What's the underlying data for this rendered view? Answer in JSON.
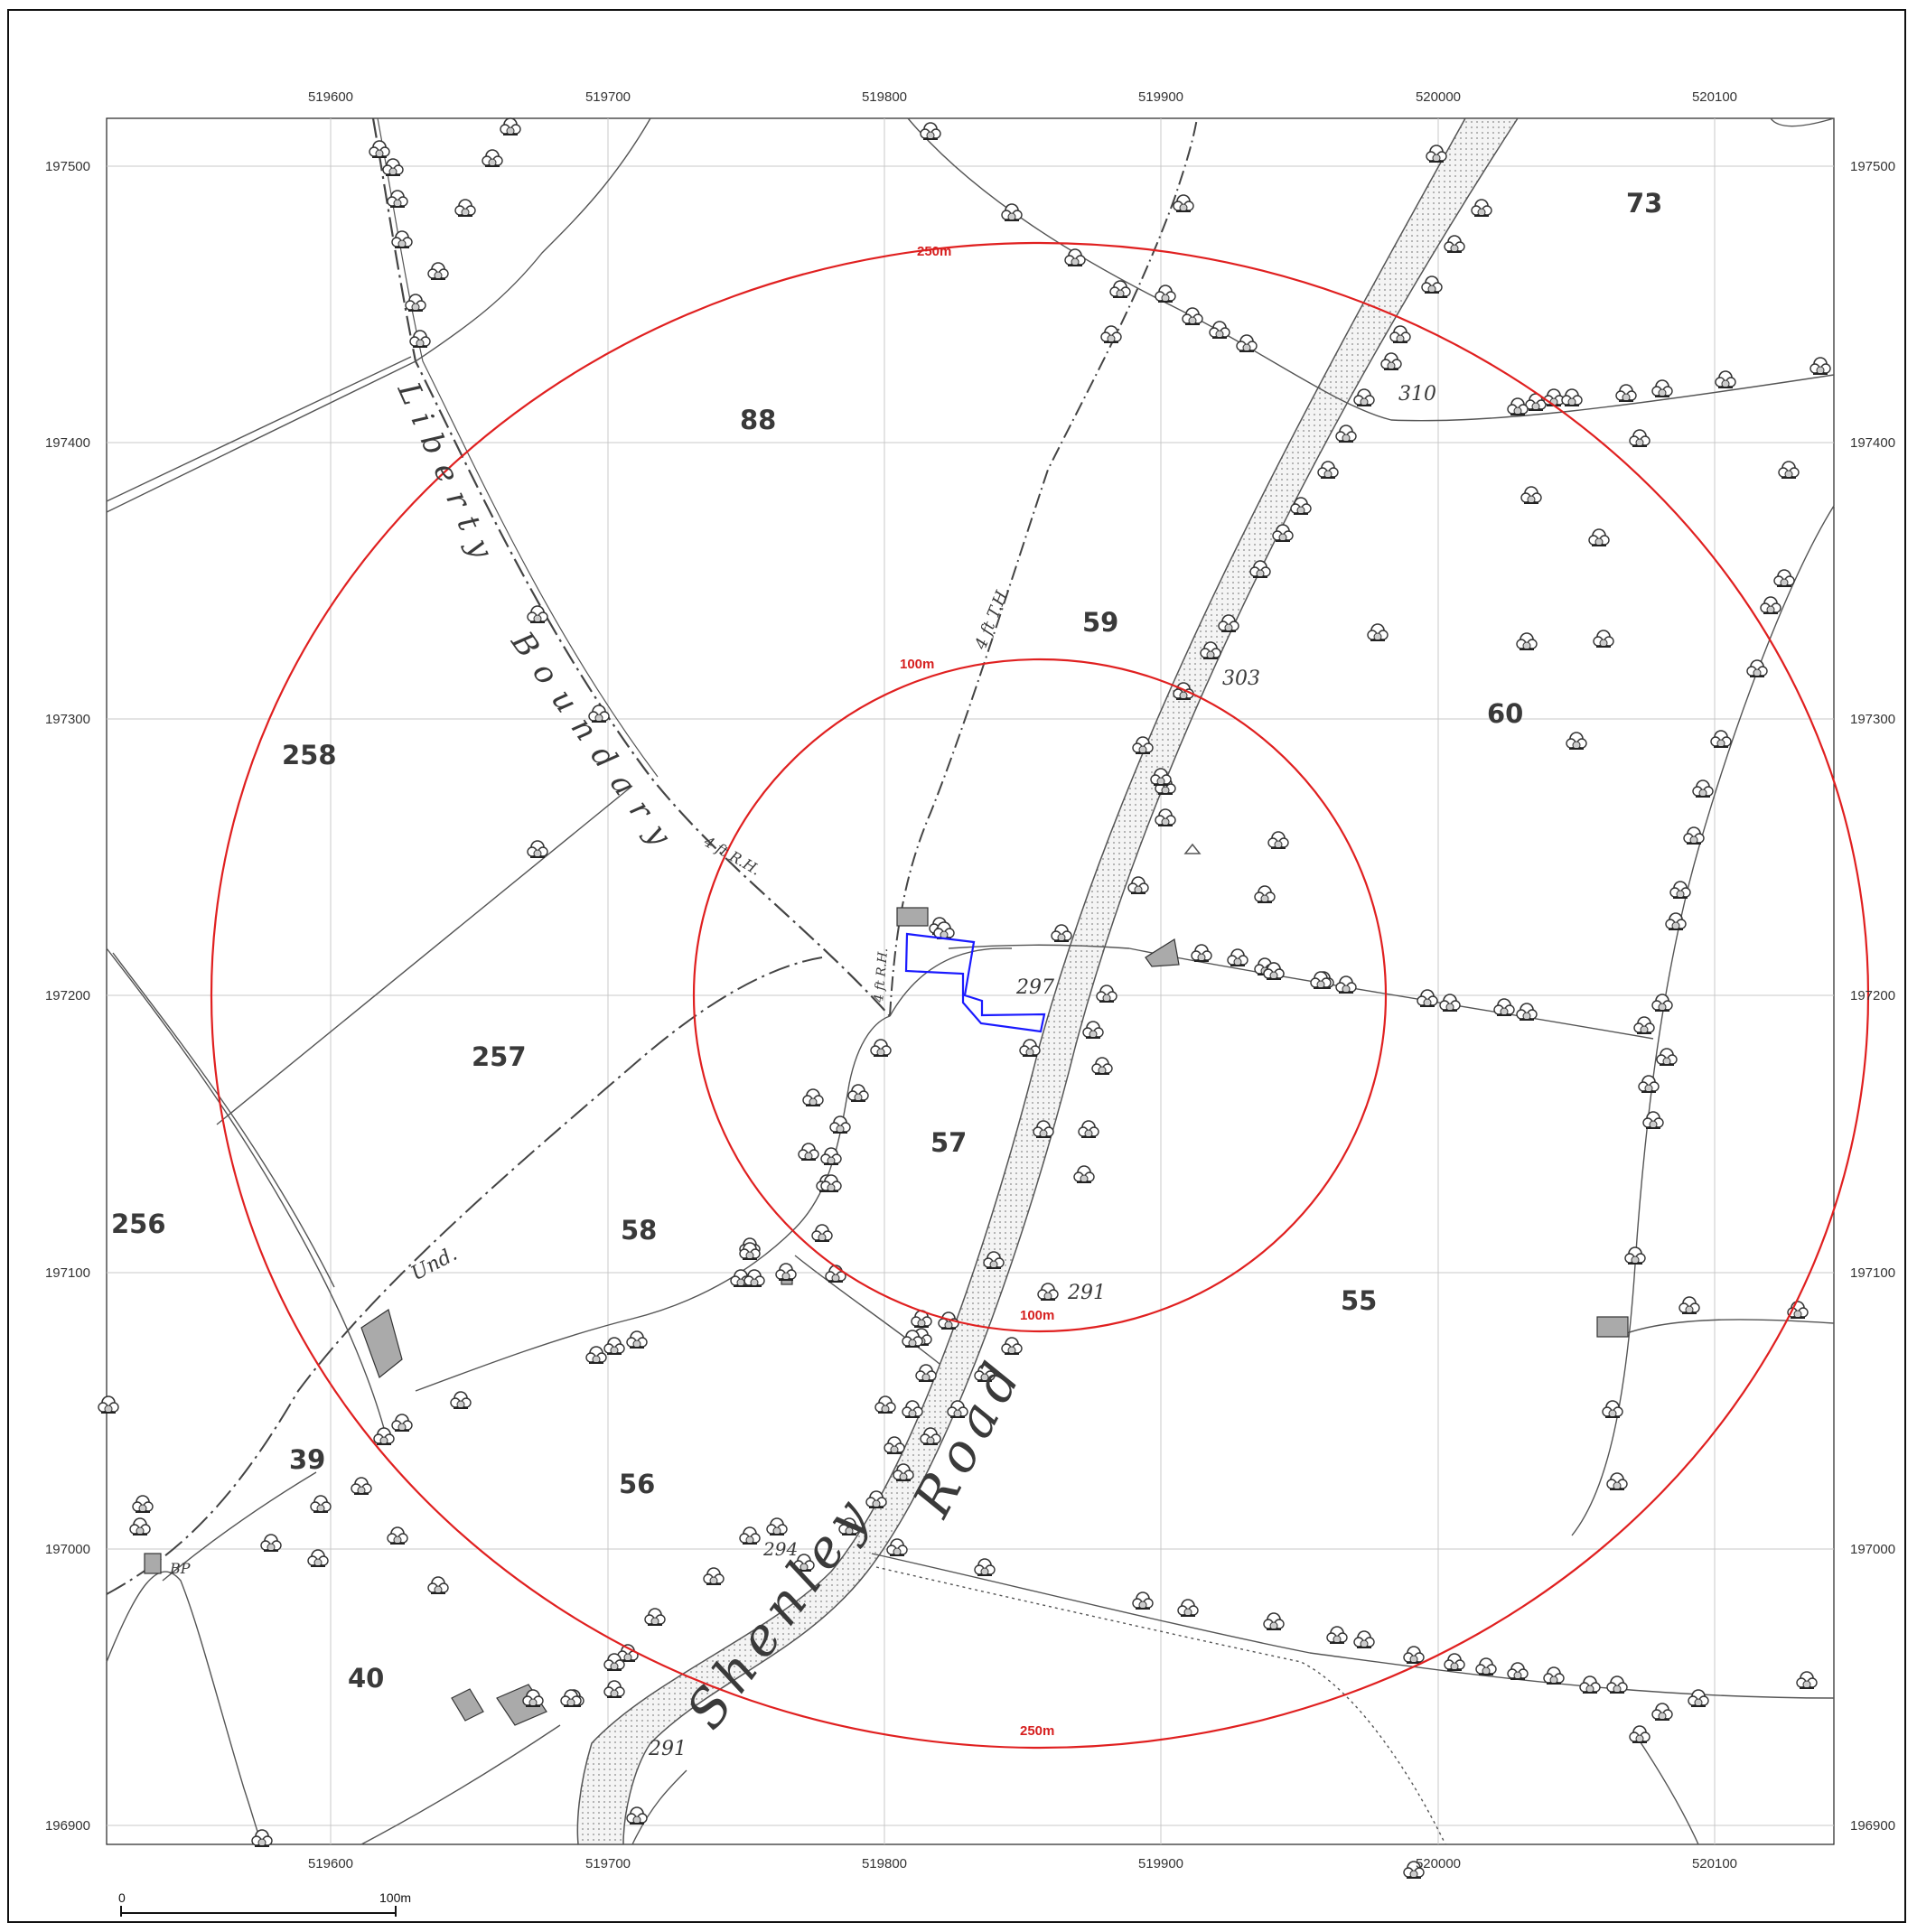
{
  "map": {
    "grid": {
      "eastings": [
        "519600",
        "519700",
        "519800",
        "519900",
        "520000",
        "520100"
      ],
      "northings": [
        "197500",
        "197400",
        "197300",
        "197200",
        "197100",
        "197000",
        "196900"
      ]
    },
    "buffers": {
      "inner_label": "100m",
      "outer_label": "250m",
      "color": "#e02020"
    },
    "site_outline_color": "#1a1aff",
    "field_numbers": {
      "f88": "88",
      "f59": "59",
      "f60": "60",
      "f73": "73",
      "f258": "258",
      "f257": "257",
      "f256": "256",
      "f57": "57",
      "f58": "58",
      "f55": "55",
      "f39": "39",
      "f56": "56",
      "f40": "40"
    },
    "spot_heights": {
      "h310": "310",
      "h303": "303",
      "h297": "297",
      "h291a": "291",
      "h291b": "291",
      "h294": "294"
    },
    "labels": {
      "liberty": "Liberty",
      "boundary": "Boundary",
      "shenley": "Shenley",
      "road": "Road",
      "und": "Und.",
      "bp": "BP",
      "rh1": "4 ft R.H.",
      "rh2": "4 ft R.H.",
      "tdh": "4 ft T.H."
    },
    "scale_bar": {
      "start": "0",
      "end": "100m"
    }
  }
}
